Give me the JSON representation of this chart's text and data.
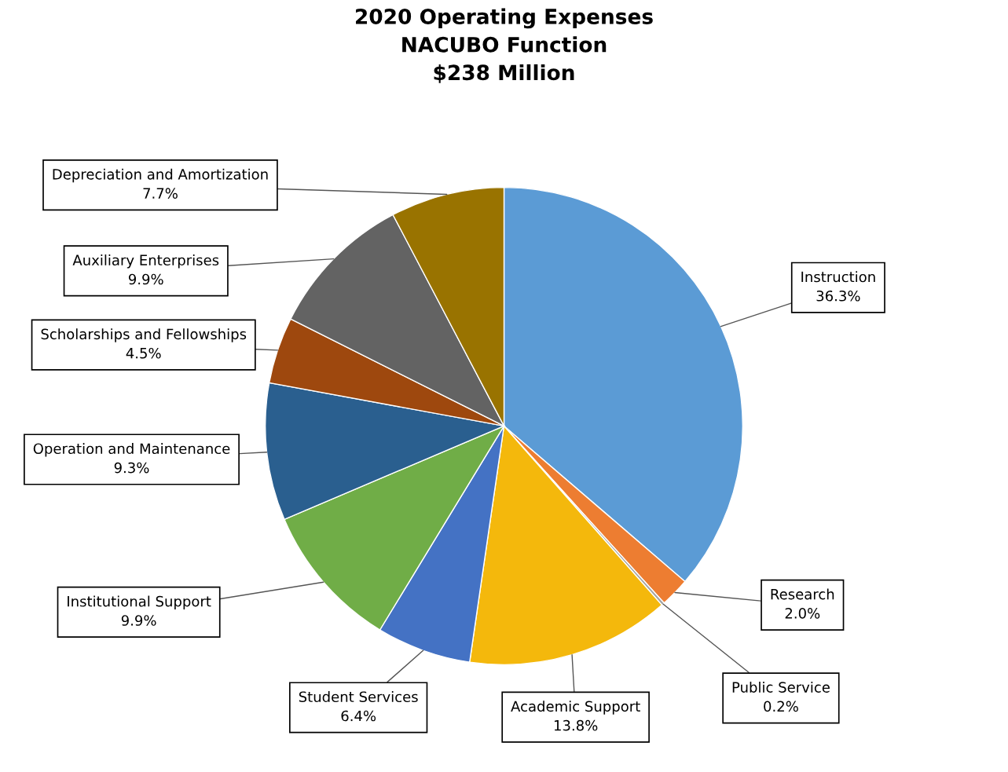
{
  "chart_data": {
    "type": "pie",
    "title": "2020 Operating Expenses\nNACUBO Function\n$238 Million",
    "categories": [
      "Instruction",
      "Research",
      "Public Service",
      "Academic Support",
      "Student Services",
      "Institutional Support",
      "Operation and Maintenance",
      "Scholarships and Fellowships",
      "Auxiliary Enterprises",
      "Depreciation and Amortization"
    ],
    "values": [
      36.3,
      2.0,
      0.2,
      13.8,
      6.4,
      9.9,
      9.3,
      4.5,
      9.9,
      7.7
    ],
    "colors": [
      "#5b9bd5",
      "#ed7d31",
      "#a5a5a5",
      "#f4b80c",
      "#4472c4",
      "#70ad47",
      "#2a5f8f",
      "#9e480e",
      "#636363",
      "#997300"
    ],
    "value_labels": [
      "36.3%",
      "2.0%",
      "0.2%",
      "13.8%",
      "6.4%",
      "9.9%",
      "9.3%",
      "4.5%",
      "9.9%",
      "7.7%"
    ]
  }
}
